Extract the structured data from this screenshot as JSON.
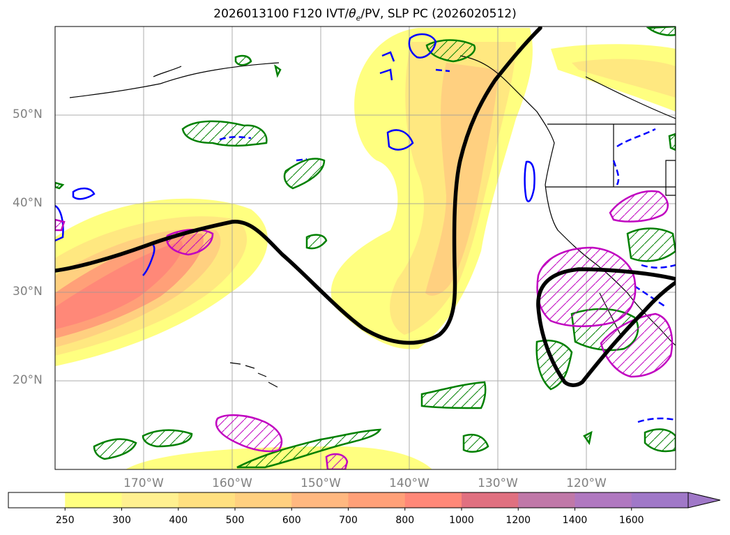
{
  "title": "2026013100 F120 IVT/θe/PV, SLP PC (2026020512)",
  "title_parts": {
    "pre": "2026013100 F120 IVT/",
    "theta": "θ",
    "sub": "e",
    "post": "/PV, SLP PC (2026020512)"
  },
  "map": {
    "projection": "PlateCarree",
    "lon_range": [
      -180,
      -110
    ],
    "lat_range": [
      10,
      60
    ],
    "lat_labels": [
      "50°N",
      "40°N",
      "30°N",
      "20°N"
    ],
    "lat_values": [
      50,
      40,
      30,
      20
    ],
    "lon_labels": [
      "170°W",
      "160°W",
      "150°W",
      "140°W",
      "130°W",
      "120°W"
    ],
    "lon_values": [
      -170,
      -160,
      -150,
      -140,
      -130,
      -120
    ],
    "contours": {
      "slp_pc": {
        "color": "#000000",
        "style": "solid thick"
      },
      "pv_positive": {
        "color": "#008000",
        "style": "solid hatched"
      },
      "pv_negative": {
        "color": "#0000ff",
        "style": "solid / dashed"
      },
      "theta_e": {
        "color": "#c000c0",
        "style": "solid hatched"
      }
    }
  },
  "colorbar": {
    "levels": [
      "250",
      "300",
      "400",
      "500",
      "600",
      "700",
      "800",
      "1000",
      "1200",
      "1400",
      "1600"
    ],
    "colors": [
      "#ffffff",
      "#ffff80",
      "#fff090",
      "#ffe080",
      "#ffd080",
      "#ffb880",
      "#ffa078",
      "#ff8878",
      "#e07080",
      "#c078a8",
      "#b078c0",
      "#a078c8"
    ],
    "extend": "max"
  }
}
